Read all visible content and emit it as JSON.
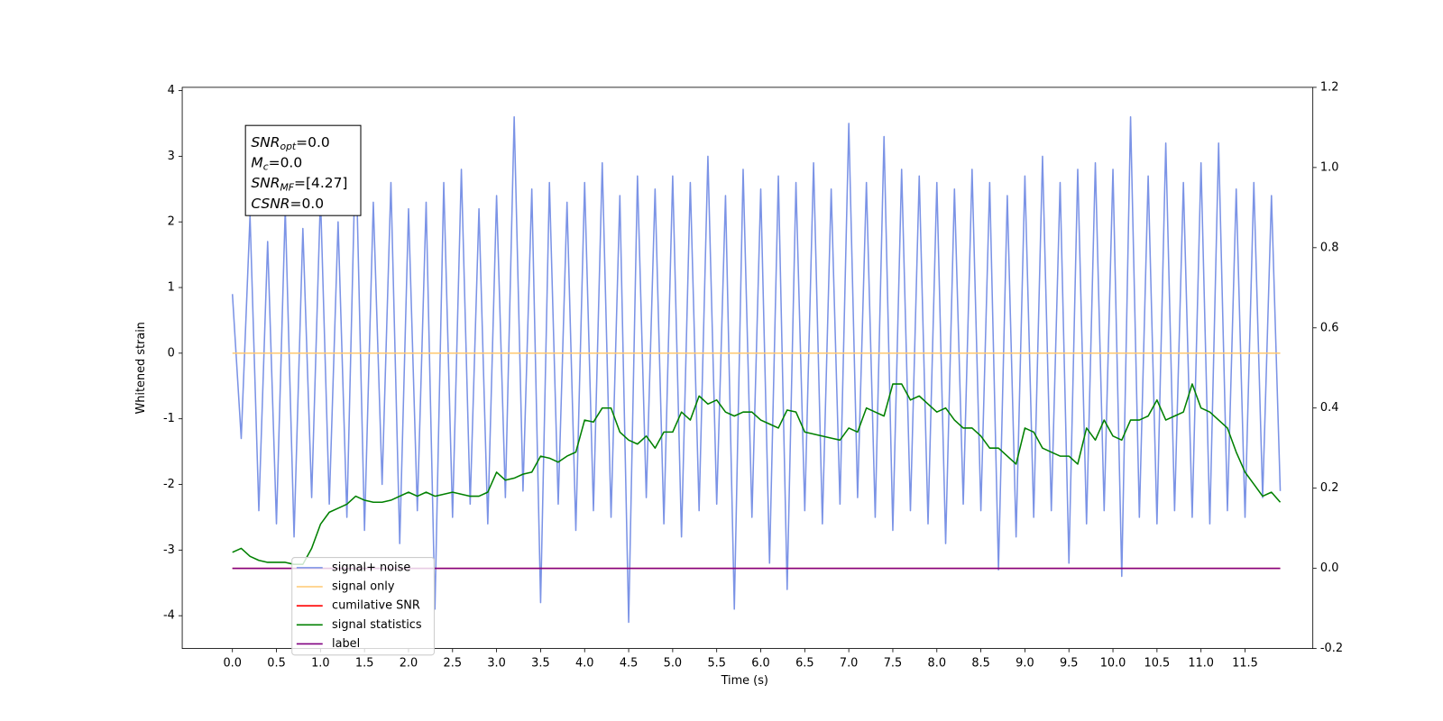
{
  "chart_data": {
    "type": "line",
    "xlabel": "Time (s)",
    "ylabel": "Whitened strain",
    "xlim": [
      -0.57,
      12.27
    ],
    "ylim": [
      -4.5,
      4.05
    ],
    "y2lim": [
      -0.2,
      1.2
    ],
    "xticks": [
      {
        "value": 0,
        "label": "0.0"
      },
      0.5,
      {
        "value": 1,
        "label": "1.0"
      },
      1.5,
      {
        "value": 2,
        "label": "2.0"
      },
      2.5,
      {
        "value": 3,
        "label": "3.0"
      },
      3.5,
      {
        "value": 4,
        "label": "4.0"
      },
      4.5,
      {
        "value": 5,
        "label": "5.0"
      },
      5.5,
      {
        "value": 6,
        "label": "6.0"
      },
      6.5,
      {
        "value": 7,
        "label": "7.0"
      },
      7.5,
      {
        "value": 8,
        "label": "8.0"
      },
      8.5,
      {
        "value": 9,
        "label": "9.0"
      },
      9.5,
      {
        "value": 10,
        "label": "10.0"
      },
      10.5,
      {
        "value": 11,
        "label": "11.0"
      },
      11.5
    ],
    "yticks": [
      -4,
      -3,
      -2,
      -1,
      0,
      1,
      2,
      3,
      4
    ],
    "y2ticks": [
      -0.2,
      {
        "value": 0,
        "label": "0.0"
      },
      0.2,
      0.4,
      0.6,
      0.8,
      {
        "value": 1,
        "label": "1.0"
      },
      1.2
    ],
    "x": [
      0.0,
      0.1,
      0.2,
      0.3,
      0.4,
      0.5,
      0.6,
      0.7,
      0.8,
      0.9,
      1.0,
      1.1,
      1.2,
      1.3,
      1.4,
      1.5,
      1.6,
      1.7,
      1.8,
      1.9,
      2.0,
      2.1,
      2.2,
      2.3,
      2.4,
      2.5,
      2.6,
      2.7,
      2.8,
      2.9,
      3.0,
      3.1,
      3.2,
      3.3,
      3.4,
      3.5,
      3.6,
      3.7,
      3.8,
      3.9,
      4.0,
      4.1,
      4.2,
      4.3,
      4.4,
      4.5,
      4.6,
      4.7,
      4.8,
      4.9,
      5.0,
      5.1,
      5.2,
      5.3,
      5.4,
      5.5,
      5.6,
      5.7,
      5.8,
      5.9,
      6.0,
      6.1,
      6.2,
      6.3,
      6.4,
      6.5,
      6.6,
      6.7,
      6.8,
      6.9,
      7.0,
      7.1,
      7.2,
      7.3,
      7.4,
      7.5,
      7.6,
      7.7,
      7.8,
      7.9,
      8.0,
      8.1,
      8.2,
      8.3,
      8.4,
      8.5,
      8.6,
      8.7,
      8.8,
      8.9,
      9.0,
      9.1,
      9.2,
      9.3,
      9.4,
      9.5,
      9.6,
      9.7,
      9.8,
      9.9,
      10.0,
      10.1,
      10.2,
      10.3,
      10.4,
      10.5,
      10.6,
      10.7,
      10.8,
      10.9,
      11.0,
      11.1,
      11.2,
      11.3,
      11.4,
      11.5,
      11.6,
      11.7,
      11.8,
      11.9
    ],
    "series": [
      {
        "name": "signal+ noise",
        "color": "#7b93e6",
        "axis": "y",
        "values": [
          0.9,
          -1.3,
          2.1,
          -2.4,
          1.7,
          -2.6,
          2.2,
          -2.8,
          1.9,
          -2.2,
          2.4,
          -2.3,
          2.0,
          -2.5,
          3.2,
          -2.7,
          2.3,
          -2.0,
          2.6,
          -2.9,
          2.2,
          -2.4,
          2.3,
          -3.9,
          2.6,
          -2.5,
          2.8,
          -2.3,
          2.2,
          -2.6,
          2.4,
          -2.2,
          3.6,
          -2.1,
          2.5,
          -3.8,
          2.6,
          -2.3,
          2.3,
          -2.7,
          2.6,
          -2.4,
          2.9,
          -2.5,
          2.4,
          -4.1,
          2.7,
          -2.2,
          2.5,
          -2.6,
          2.7,
          -2.8,
          2.6,
          -2.4,
          3.0,
          -2.3,
          2.4,
          -3.9,
          2.8,
          -2.5,
          2.5,
          -3.2,
          2.7,
          -3.6,
          2.6,
          -2.4,
          2.9,
          -2.6,
          2.5,
          -2.3,
          3.5,
          -2.2,
          2.6,
          -2.5,
          3.3,
          -2.7,
          2.8,
          -2.4,
          2.7,
          -2.6,
          2.6,
          -2.9,
          2.5,
          -2.3,
          2.8,
          -2.4,
          2.6,
          -3.3,
          2.4,
          -2.8,
          2.7,
          -2.5,
          3.0,
          -2.4,
          2.6,
          -3.2,
          2.8,
          -2.6,
          2.9,
          -2.4,
          2.8,
          -3.4,
          3.6,
          -2.5,
          2.7,
          -2.6,
          3.2,
          -2.4,
          2.6,
          -2.5,
          2.9,
          -2.6,
          3.2,
          -2.4,
          2.5,
          -2.5,
          2.6,
          -2.2,
          2.4,
          -2.1
        ]
      },
      {
        "name": "signal only",
        "color": "#ffc870",
        "axis": "y",
        "x": [
          0.0,
          11.9
        ],
        "values": [
          0,
          0
        ]
      },
      {
        "name": "cumilative SNR",
        "color": "#ff0000",
        "axis": "y2",
        "x": [
          0.0,
          11.9
        ],
        "values": [
          0,
          0
        ]
      },
      {
        "name": "signal statistics",
        "color": "#008000",
        "axis": "y2",
        "values": [
          0.04,
          0.05,
          0.03,
          0.02,
          0.015,
          0.015,
          0.015,
          0.01,
          0.01,
          0.05,
          0.11,
          0.14,
          0.15,
          0.16,
          0.18,
          0.17,
          0.165,
          0.165,
          0.17,
          0.18,
          0.19,
          0.18,
          0.19,
          0.18,
          0.185,
          0.19,
          0.185,
          0.18,
          0.18,
          0.19,
          0.24,
          0.22,
          0.225,
          0.235,
          0.24,
          0.28,
          0.275,
          0.265,
          0.28,
          0.29,
          0.37,
          0.365,
          0.4,
          0.4,
          0.34,
          0.32,
          0.31,
          0.33,
          0.3,
          0.34,
          0.34,
          0.39,
          0.37,
          0.43,
          0.41,
          0.42,
          0.39,
          0.38,
          0.39,
          0.39,
          0.37,
          0.36,
          0.35,
          0.395,
          0.39,
          0.34,
          0.335,
          0.33,
          0.325,
          0.32,
          0.35,
          0.34,
          0.4,
          0.39,
          0.38,
          0.46,
          0.46,
          0.42,
          0.43,
          0.41,
          0.39,
          0.4,
          0.37,
          0.35,
          0.35,
          0.33,
          0.3,
          0.3,
          0.28,
          0.26,
          0.35,
          0.34,
          0.3,
          0.29,
          0.28,
          0.28,
          0.26,
          0.35,
          0.32,
          0.37,
          0.33,
          0.32,
          0.37,
          0.37,
          0.38,
          0.42,
          0.37,
          0.38,
          0.39,
          0.46,
          0.4,
          0.39,
          0.37,
          0.35,
          0.29,
          0.24,
          0.21,
          0.18,
          0.19,
          0.165
        ]
      },
      {
        "name": "label",
        "color": "#800080",
        "axis": "y2",
        "x": [
          0.0,
          11.9
        ],
        "values": [
          0,
          0
        ]
      }
    ],
    "textbox": [
      {
        "symbol": "SNR",
        "subscript": "opt",
        "text": "=0.0"
      },
      {
        "symbol": "M",
        "subscript": "c",
        "text": "=0.0"
      },
      {
        "symbol": "SNR",
        "subscript": "MF",
        "text": "=[4.27]"
      },
      {
        "symbol": "CSNR",
        "text": "=0.0"
      }
    ]
  }
}
